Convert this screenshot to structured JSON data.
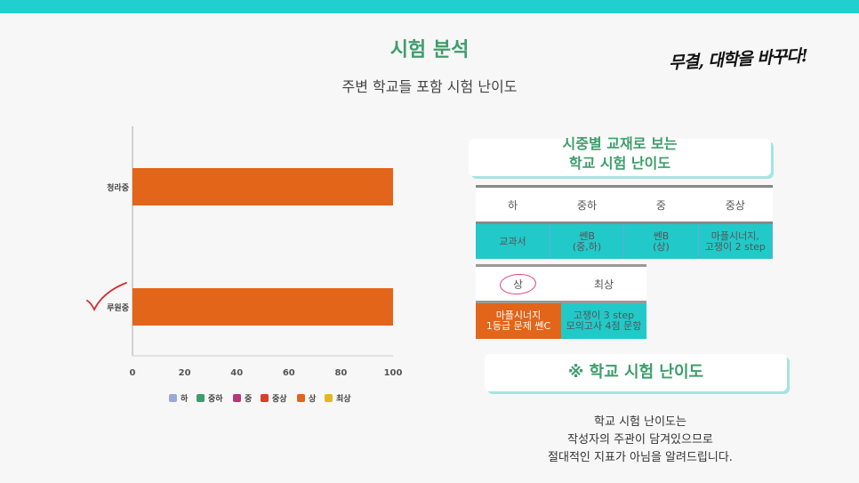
{
  "title": "시험 분석",
  "subtitle": "주변 학교들 포함 시험 난이도",
  "slogan": "무결, 대학을 바꾸다!",
  "chart_data": {
    "type": "bar",
    "orientation": "horizontal",
    "stacked": true,
    "categories": [
      "청라중",
      "루원중"
    ],
    "series": [
      {
        "name": "하",
        "color": "#9aa8d8",
        "values": [
          0,
          0
        ]
      },
      {
        "name": "중하",
        "color": "#3f9d6b",
        "values": [
          0,
          0
        ]
      },
      {
        "name": "중",
        "color": "#b8367a",
        "values": [
          0,
          0
        ]
      },
      {
        "name": "중상",
        "color": "#e03a2a",
        "values": [
          0,
          0
        ]
      },
      {
        "name": "상",
        "color": "#e2651a",
        "values": [
          100,
          100
        ]
      },
      {
        "name": "최상",
        "color": "#e5b81a",
        "values": [
          0,
          0
        ]
      }
    ],
    "xlim": [
      0,
      100
    ],
    "xticks": [
      "0",
      "20",
      "40",
      "60",
      "80",
      "100"
    ],
    "legend_position": "bottom"
  },
  "table_heading": [
    "시중별 교재로 보는",
    "학교 시험 난이도"
  ],
  "table1": {
    "headers": [
      "하",
      "중하",
      "중",
      "중상"
    ],
    "cells": [
      [
        "교과서"
      ],
      [
        "쎈B",
        "(중,하)"
      ],
      [
        "쎈B",
        "(상)"
      ],
      [
        "마플시너지,",
        "고쟁이 2 step"
      ]
    ]
  },
  "table2": {
    "headers": [
      "상",
      "최상"
    ],
    "cells": [
      [
        "마플시너지",
        "1등급 문제 쎈C"
      ],
      [
        "고쟁이 3 step",
        "모의고사 4점 문항"
      ]
    ]
  },
  "section_heading": "※ 학교 시험 난이도",
  "note_lines": [
    "학교 시험 난이도는",
    "작성자의 주관이 담겨있으므로",
    "절대적인 지표가 아님을 알려드립니다."
  ],
  "colors": {
    "accent": "#22cfcf",
    "heading_green": "#3f9d6b",
    "bar_orange": "#e2651a",
    "cell_teal": "#22c9c9"
  }
}
